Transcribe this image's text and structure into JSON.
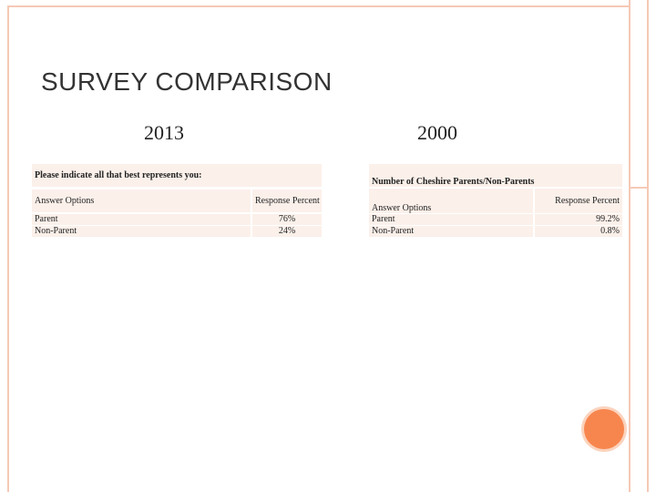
{
  "header": {
    "title": "SURVEY COMPARISON"
  },
  "left": {
    "year": "2013",
    "table": {
      "header": "Please indicate all that best represents you:",
      "columns": [
        "Answer Options",
        "Response Percent"
      ],
      "rows": [
        [
          "Parent",
          "76%"
        ],
        [
          "Non-Parent",
          "24%"
        ]
      ]
    }
  },
  "right": {
    "year": "2000",
    "table": {
      "header": "Number of Cheshire Parents/Non-Parents",
      "columns": [
        "Answer Options",
        "Response Percent"
      ],
      "rows": [
        [
          "Parent",
          "99.2%"
        ],
        [
          "Non-Parent",
          "0.8%"
        ]
      ]
    }
  }
}
